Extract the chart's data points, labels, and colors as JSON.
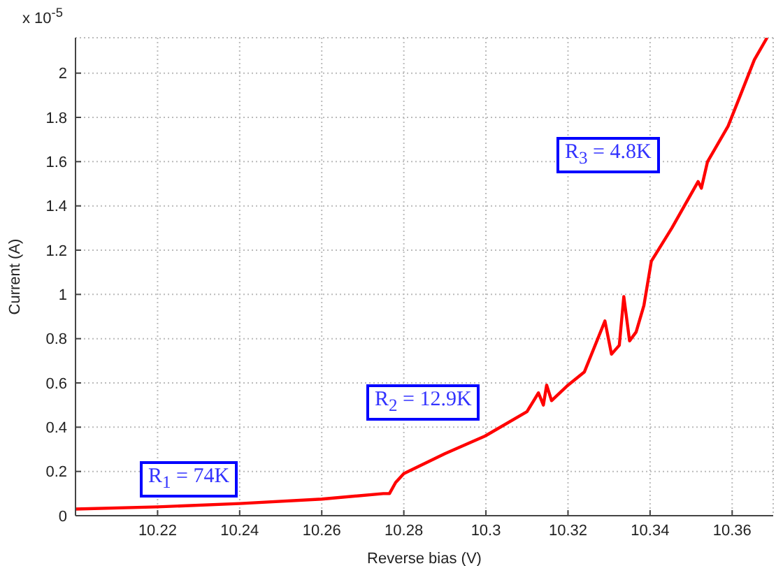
{
  "chart_data": {
    "type": "line",
    "xlabel": "Reverse bias (V)",
    "ylabel": "Current (A)",
    "annotations": [
      "x 10$^{-5}$",
      "R$_{1}$ = 74K",
      "R$_{2}$ = 12.9K",
      "R$_{3}$ = 4.8K"
    ],
    "x": [
      10.2,
      10.22,
      10.24,
      10.26,
      10.275,
      10.2765,
      10.278,
      10.28,
      10.29,
      10.2998,
      10.31,
      10.3128,
      10.314,
      10.3148,
      10.316,
      10.32,
      10.324,
      10.329,
      10.3306,
      10.3325,
      10.3336,
      10.335,
      10.3366,
      10.3385,
      10.3403,
      10.3453,
      10.3517,
      10.3525,
      10.354,
      10.359,
      10.362,
      10.3654,
      10.3685
    ],
    "series": [
      {
        "color": "#ff0000",
        "values": [
          0.03,
          0.04,
          0.055,
          0.075,
          0.1,
          0.1,
          0.15,
          0.19,
          0.28,
          0.36,
          0.47,
          0.555,
          0.5,
          0.59,
          0.52,
          0.59,
          0.65,
          0.88,
          0.73,
          0.77,
          0.99,
          0.79,
          0.83,
          0.95,
          1.15,
          1.3,
          1.51,
          1.48,
          1.6,
          1.76,
          1.9,
          2.06,
          2.16
        ]
      }
    ],
    "xlim": [
      10.2,
      10.37
    ],
    "xticks": [
      10.22,
      10.24,
      10.26,
      10.28,
      10.3,
      10.32,
      10.34,
      10.36
    ],
    "ylim": [
      0,
      2.16
    ],
    "yticks": [
      0,
      0.2,
      0.4,
      0.6,
      0.8,
      1,
      1.2,
      1.4,
      1.6,
      1.8,
      2
    ],
    "grid": true,
    "marker": "none",
    "line_style": "solid"
  }
}
